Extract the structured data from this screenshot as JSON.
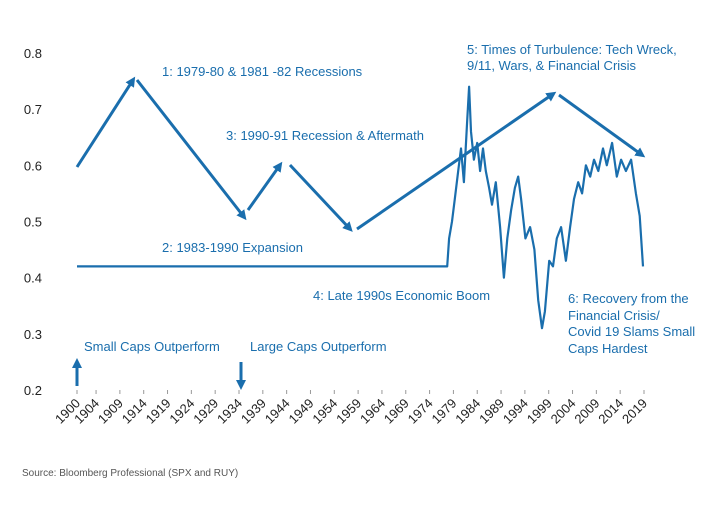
{
  "chart_data": {
    "type": "line",
    "x": [
      1900,
      1977.7,
      1978.1,
      1978.7,
      1979.3,
      1980.0,
      1980.6,
      1981.2,
      1981.9,
      1982.3,
      1982.7,
      1983.3,
      1984.0,
      1984.6,
      1985.2,
      1985.8,
      1986.5,
      1987.1,
      1987.9,
      1988.8,
      1989.6,
      1990.3,
      1991.1,
      1991.9,
      1992.6,
      1993.2,
      1994.1,
      1995.1,
      1996.0,
      1996.8,
      1997.6,
      1998.2,
      1999.1,
      1999.9,
      2000.7,
      2001.6,
      2002.6,
      2003.5,
      2004.3,
      2005.2,
      2006.0,
      2006.8,
      2007.7,
      2008.5,
      2009.4,
      2010.4,
      2011.2,
      2012.3,
      2013.3,
      2014.2,
      2015.2,
      2016.3,
      2017.3,
      2018.1,
      2018.8
    ],
    "series": [
      {
        "color": "#1a6ead",
        "values": [
          0.42,
          0.42,
          0.47,
          0.5,
          0.54,
          0.59,
          0.63,
          0.57,
          0.68,
          0.74,
          0.66,
          0.61,
          0.64,
          0.59,
          0.63,
          0.59,
          0.56,
          0.53,
          0.57,
          0.49,
          0.4,
          0.47,
          0.52,
          0.56,
          0.58,
          0.54,
          0.47,
          0.49,
          0.45,
          0.36,
          0.31,
          0.34,
          0.43,
          0.42,
          0.47,
          0.49,
          0.43,
          0.49,
          0.54,
          0.57,
          0.55,
          0.6,
          0.58,
          0.61,
          0.59,
          0.63,
          0.6,
          0.64,
          0.58,
          0.61,
          0.59,
          0.61,
          0.55,
          0.51,
          0.42
        ]
      }
    ],
    "xlim": [
      1900,
      2019
    ],
    "xticks": [
      1900,
      1904,
      1909,
      1914,
      1919,
      1924,
      1929,
      1934,
      1939,
      1944,
      1949,
      1954,
      1959,
      1964,
      1969,
      1974,
      1979,
      1984,
      1989,
      1994,
      1999,
      2004,
      2009,
      2014,
      2019
    ],
    "ylim": [
      0.2,
      0.8
    ],
    "yticks": [
      0.2,
      0.3,
      0.4,
      0.5,
      0.6,
      0.7,
      0.8
    ],
    "grid": false,
    "annotations": [
      "1: 1979-80 & 1981 -82 Recessions",
      "2: 1983-1990 Expansion",
      "3: 1990-91 Recession & Aftermath",
      "4: Late 1990s Economic Boom",
      "5: Times of Turbulence: Tech Wreck,",
      "9/11, Wars, & Financial Crisis",
      "6: Recovery from the",
      "Financial Crisis/",
      "Covid 19 Slams Small",
      "Caps Hardest",
      "Small Caps Outperform",
      "Large Caps Outperform"
    ],
    "source": "Source: Bloomberg Professional (SPX and RUY)"
  }
}
